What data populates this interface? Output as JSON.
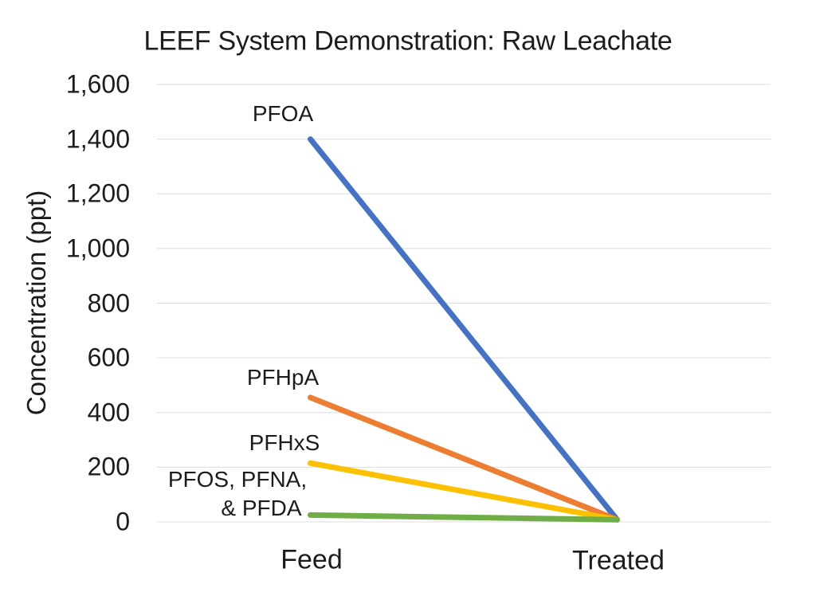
{
  "chart_data": {
    "type": "line",
    "title": "LEEF System Demonstration: Raw Leachate",
    "xlabel": "",
    "ylabel": "Concentration (ppt)",
    "categories": [
      "Feed",
      "Treated"
    ],
    "ylim": [
      0,
      1600
    ],
    "ytick_labels": [
      "0",
      "200",
      "400",
      "600",
      "800",
      "1,000",
      "1,200",
      "1,400",
      "1,600"
    ],
    "grid": "horizontal",
    "legend_position": "none (series labeled directly on chart)",
    "series": [
      {
        "name": "PFOA",
        "values": [
          1400,
          8
        ],
        "color": "#4472C4",
        "label_lines": [
          "PFOA"
        ]
      },
      {
        "name": "PFHpA",
        "values": [
          455,
          8
        ],
        "color": "#ED7D31",
        "label_lines": [
          "PFHpA"
        ]
      },
      {
        "name": "PFHxS",
        "values": [
          215,
          8
        ],
        "color": "#FFC000",
        "label_lines": [
          "PFHxS"
        ]
      },
      {
        "name": "PFOS, PFNA, & PFDA",
        "values": [
          25,
          8
        ],
        "color": "#70AD47",
        "label_lines": [
          "PFOS, PFNA,",
          "& PFDA"
        ]
      }
    ]
  },
  "colors": {
    "background": "#FFFFFF",
    "gridline": "#DCDCDC",
    "text": "#1C1C1C"
  }
}
